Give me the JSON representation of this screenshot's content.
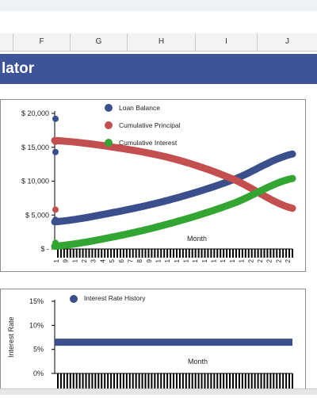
{
  "column_headers": [
    "F",
    "G",
    "H",
    "I",
    "J"
  ],
  "banner": {
    "title": "lator"
  },
  "colors": {
    "loan_balance": "#3b4f8c",
    "cumulative_principal": "#c44f4f",
    "cumulative_interest": "#33a532",
    "rate_history": "#3b4f8c",
    "banner": "#3e5499"
  },
  "chart_data": [
    {
      "type": "line",
      "xlabel": "Month",
      "ylabel": "",
      "ylim": [
        0,
        20000
      ],
      "y_ticks": [
        "$ -",
        "$ 5,000",
        "$ 10,000",
        "$ 15,000",
        "$ 20,000"
      ],
      "x_tick_labels": [
        "1",
        "9",
        "1",
        "2",
        "3",
        "4",
        "5",
        "6",
        "7",
        "8",
        "9",
        "1",
        "1",
        "1",
        "1",
        "1",
        "1",
        "1",
        "1",
        "1",
        "1",
        "2",
        "2",
        "2",
        "2",
        "2"
      ],
      "legend_position": "top-center",
      "series": [
        {
          "name": "Loan Balance",
          "x": [
            0,
            0.25,
            0.5,
            0.75,
            1.0
          ],
          "values": [
            4000,
            5400,
            7400,
            10200,
            14000
          ]
        },
        {
          "name": "Cumulative Principal",
          "x": [
            0,
            0.25,
            0.5,
            0.75,
            1.0
          ],
          "values": [
            16000,
            15000,
            13300,
            10300,
            6000
          ]
        },
        {
          "name": "Cumulative Interest",
          "x": [
            0,
            0.25,
            0.5,
            0.75,
            1.0
          ],
          "values": [
            400,
            1800,
            3900,
            6700,
            10400
          ]
        }
      ],
      "left_markers": [
        {
          "series": "Loan Balance",
          "values": [
            19200,
            14300,
            4300
          ]
        },
        {
          "series": "Cumulative Principal",
          "values": [
            15800,
            5800
          ]
        },
        {
          "series": "Cumulative Interest",
          "values": [
            900
          ]
        }
      ]
    },
    {
      "type": "line",
      "xlabel": "Month",
      "ylabel": "Interest Rate",
      "ylim": [
        0,
        0.15
      ],
      "y_ticks": [
        "0%",
        "5%",
        "10%",
        "15%"
      ],
      "legend_position": "top-left",
      "series": [
        {
          "name": "Interest Rate History",
          "x": [
            0,
            1
          ],
          "values": [
            0.065,
            0.065
          ]
        }
      ]
    }
  ]
}
